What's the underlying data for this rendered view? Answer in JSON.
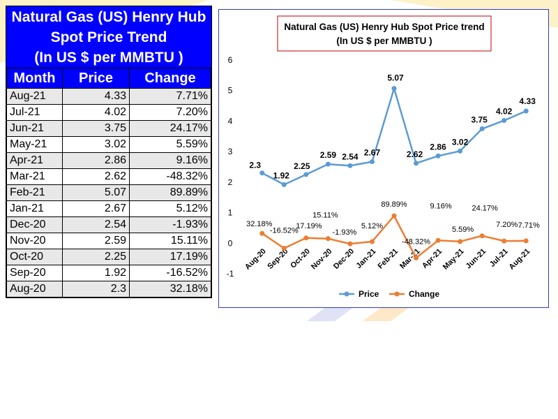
{
  "colors": {
    "table_header_bg": "#0000ff",
    "price_line": "#5b9bd5",
    "change_line": "#ed7d31",
    "title_box_border": "#c00000",
    "panel_border": "#2f3ec0"
  },
  "table": {
    "title_line1": "Natural Gas (US) Henry Hub",
    "title_line2": "Spot Price Trend",
    "title_line3": "(In US $ per MMBTU )",
    "headers": [
      "Month",
      "Price",
      "Change"
    ],
    "rows": [
      {
        "month": "Aug-21",
        "price": "4.33",
        "change": "7.71%"
      },
      {
        "month": "Jul-21",
        "price": "4.02",
        "change": "7.20%"
      },
      {
        "month": "Jun-21",
        "price": "3.75",
        "change": "24.17%"
      },
      {
        "month": "May-21",
        "price": "3.02",
        "change": "5.59%"
      },
      {
        "month": "Apr-21",
        "price": "2.86",
        "change": "9.16%"
      },
      {
        "month": "Mar-21",
        "price": "2.62",
        "change": "-48.32%"
      },
      {
        "month": "Feb-21",
        "price": "5.07",
        "change": "89.89%"
      },
      {
        "month": "Jan-21",
        "price": "2.67",
        "change": "5.12%"
      },
      {
        "month": "Dec-20",
        "price": "2.54",
        "change": "-1.93%"
      },
      {
        "month": "Nov-20",
        "price": "2.59",
        "change": "15.11%"
      },
      {
        "month": "Oct-20",
        "price": "2.25",
        "change": "17.19%"
      },
      {
        "month": "Sep-20",
        "price": "1.92",
        "change": "-16.52%"
      },
      {
        "month": "Aug-20",
        "price": "2.3",
        "change": "32.18%"
      }
    ]
  },
  "chart_data": {
    "type": "line",
    "title": "Natural Gas (US) Henry Hub Spot Price trend",
    "subtitle": "(In US $ per MMBTU )",
    "xlabel": "",
    "ylabel": "",
    "ylim": [
      -1,
      6
    ],
    "yticks": [
      "-1",
      "0",
      "1",
      "2",
      "3",
      "4",
      "5",
      "6"
    ],
    "categories": [
      "Aug-20",
      "Sep-20",
      "Oct-20",
      "Nov-20",
      "Dec-20",
      "Jan-21",
      "Feb-21",
      "Mar-21",
      "Apr-21",
      "May-21",
      "Jun-21",
      "Jul-21",
      "Aug-21"
    ],
    "series": [
      {
        "name": "Price",
        "values": [
          2.3,
          1.92,
          2.25,
          2.59,
          2.54,
          2.67,
          5.07,
          2.62,
          2.86,
          3.02,
          3.75,
          4.02,
          4.33
        ],
        "labels": [
          "2.3",
          "1.92",
          "2.25",
          "2.59",
          "2.54",
          "2.67",
          "5.07",
          "2.62",
          "2.86",
          "3.02",
          "3.75",
          "4.02",
          "4.33"
        ]
      },
      {
        "name": "Change",
        "values": [
          0.3218,
          -0.1652,
          0.1719,
          0.1511,
          -0.0193,
          0.0512,
          0.8989,
          -0.4832,
          0.0916,
          0.0559,
          0.2417,
          0.072,
          0.0771
        ],
        "labels": [
          "32.18%",
          "-16.52%",
          "17.19%",
          "15.11%",
          "-1.93%",
          "5.12%",
          "89.89%",
          "-48.32%",
          "9.16%",
          "5.59%",
          "24.17%",
          "7.20%",
          "7.71%"
        ]
      }
    ],
    "legend": "bottom",
    "grid": false
  }
}
